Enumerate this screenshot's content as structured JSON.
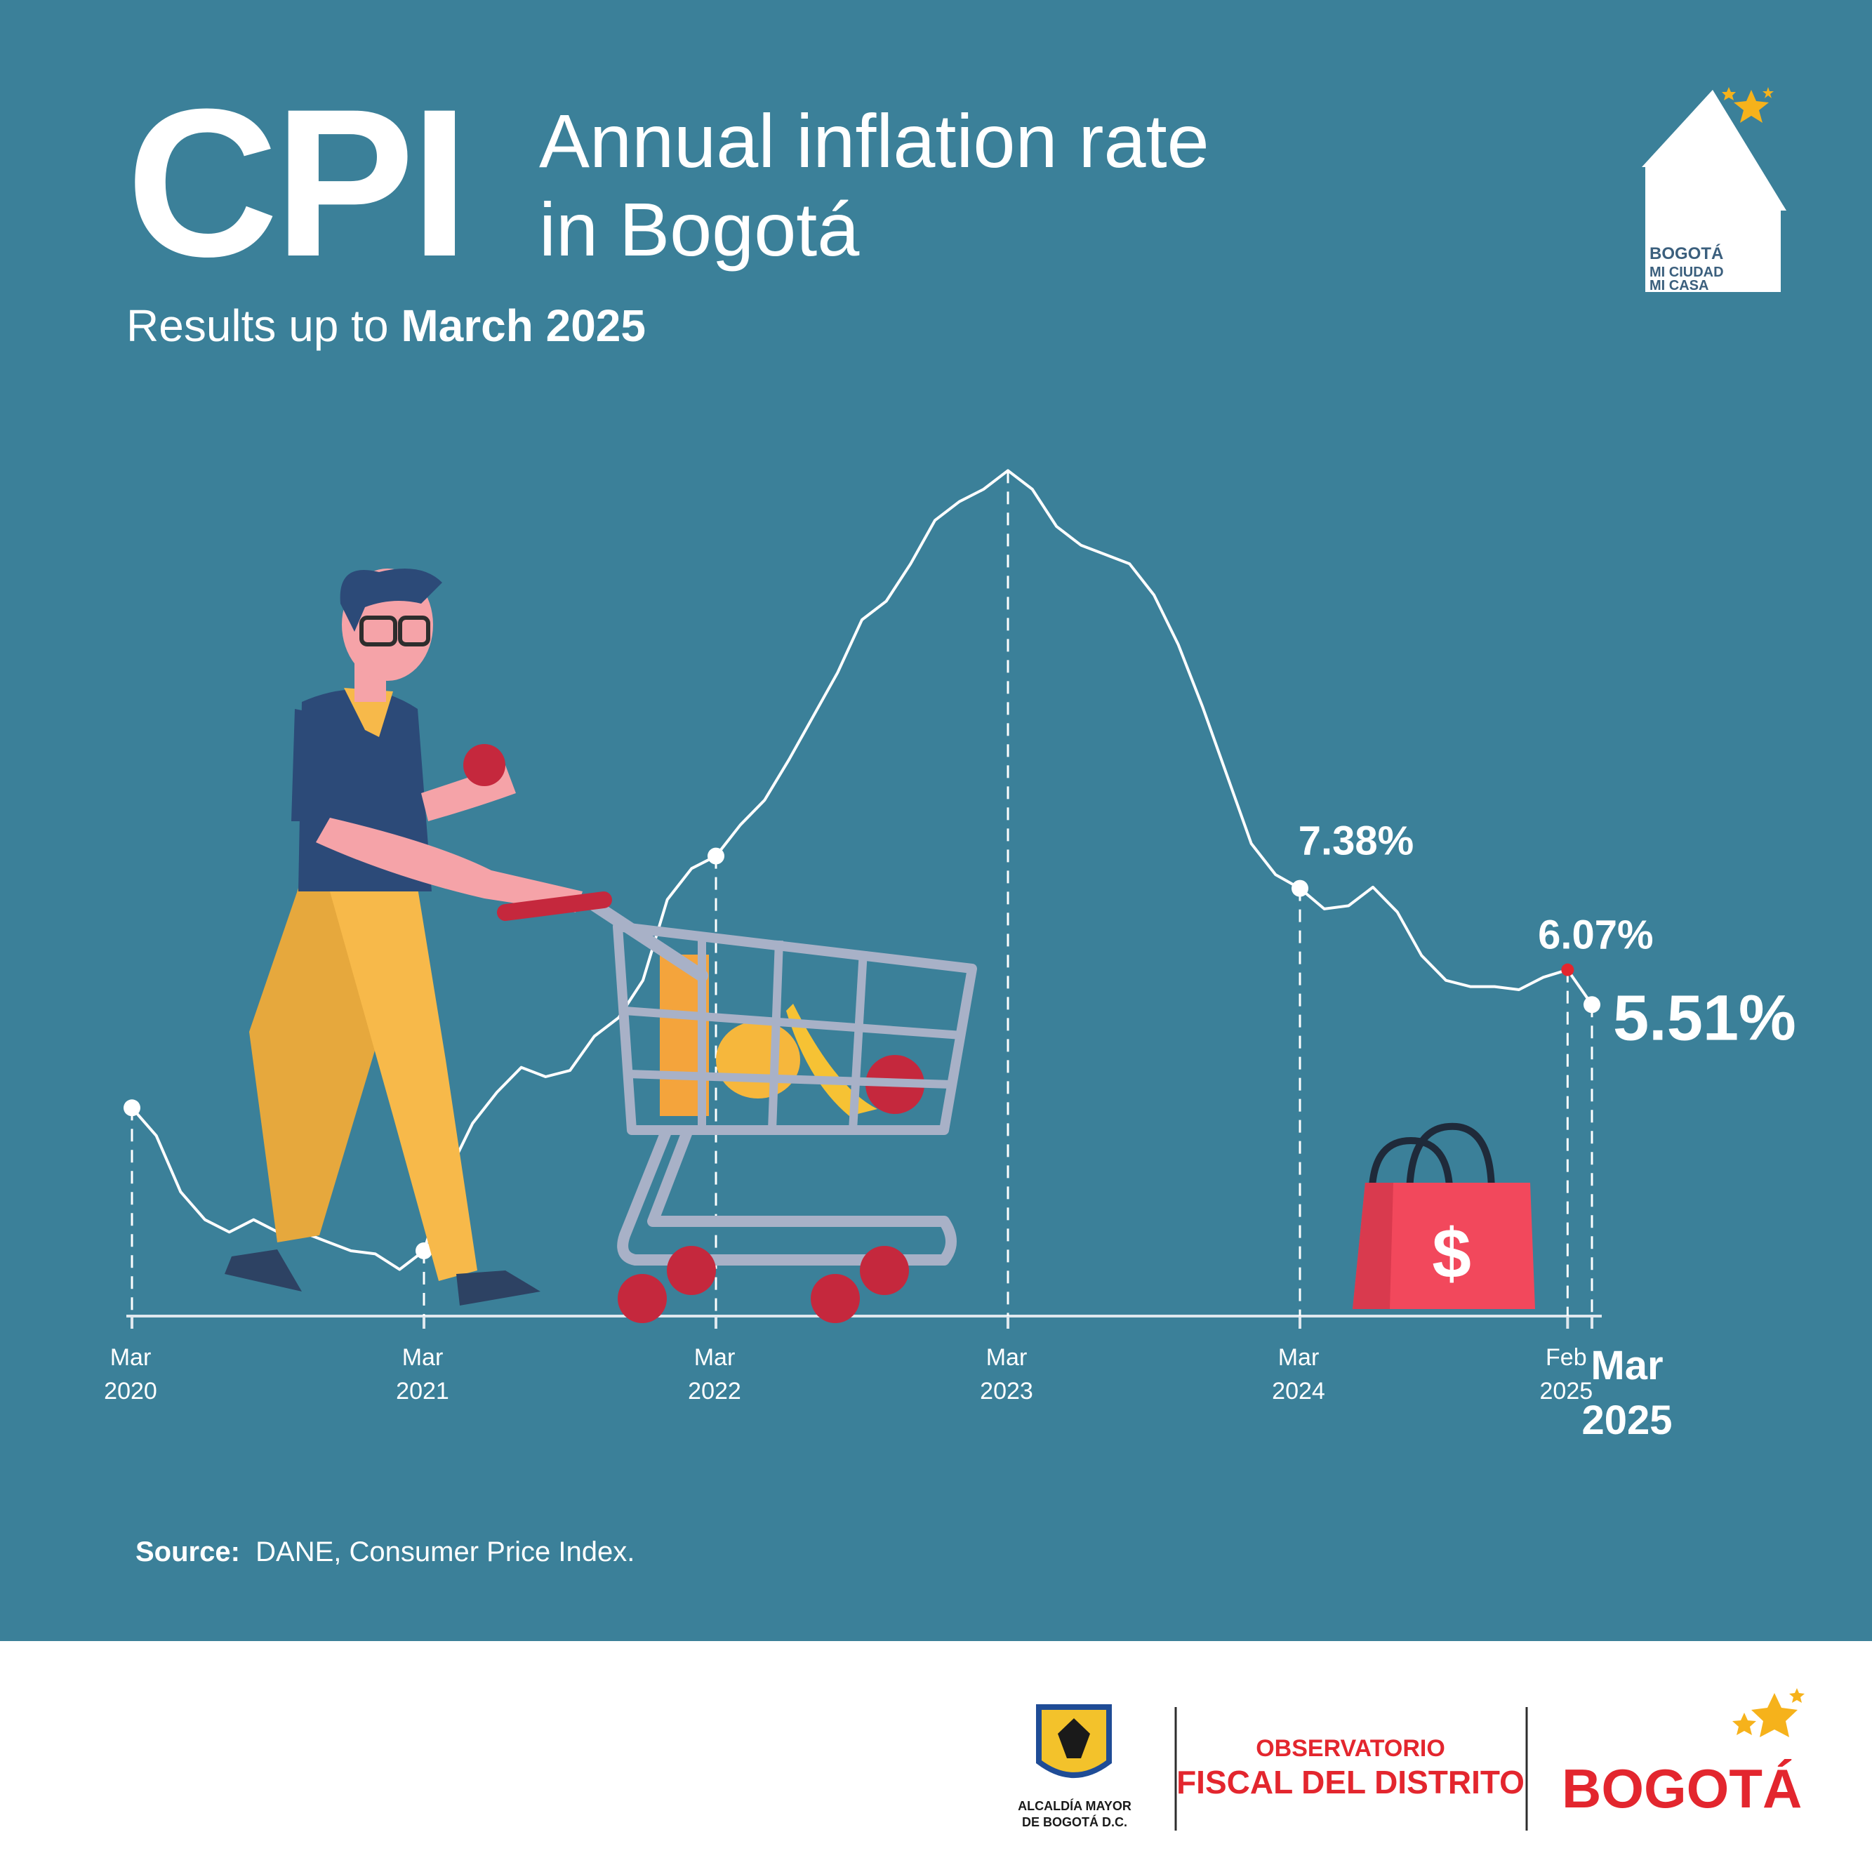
{
  "header": {
    "cpi": "CPI",
    "title_line1": "Annual inflation rate",
    "title_line2": "in Bogotá",
    "subtitle_prefix": "Results up to ",
    "subtitle_bold": "March 2025"
  },
  "source": {
    "label": "Source:",
    "text": "DANE, Consumer Price Index."
  },
  "badge": {
    "line1": "BOGOTÁ",
    "line2": "MI CIUDAD",
    "line3": "MI CASA"
  },
  "bag": {
    "symbol": "$"
  },
  "footer": {
    "alcaldia_line1": "ALCALDÍA MAYOR",
    "alcaldia_line2": "DE BOGOTÁ D.C.",
    "observatorio_line1": "OBSERVATORIO",
    "observatorio_line2": "FISCAL DEL DISTRITO",
    "brand": "BOGOTÁ"
  },
  "colors": {
    "background": "#3b8099",
    "line": "#ffffff",
    "feb_marker": "#e3262e",
    "brand_red": "#e3262e",
    "star": "#f6b21b",
    "bag": "#f2485c"
  },
  "chart_data": {
    "type": "line",
    "title": "Annual inflation rate in Bogotá",
    "subtitle": "Results up to March 2025",
    "xlabel": "",
    "ylabel": "",
    "grid": false,
    "ylim": [
      0.5,
      14.5
    ],
    "x": [
      "2020-03",
      "2020-04",
      "2020-05",
      "2020-06",
      "2020-07",
      "2020-08",
      "2020-09",
      "2020-10",
      "2020-11",
      "2020-12",
      "2021-01",
      "2021-02",
      "2021-03",
      "2021-04",
      "2021-05",
      "2021-06",
      "2021-07",
      "2021-08",
      "2021-09",
      "2021-10",
      "2021-11",
      "2021-12",
      "2022-01",
      "2022-02",
      "2022-03",
      "2022-04",
      "2022-05",
      "2022-06",
      "2022-07",
      "2022-08",
      "2022-09",
      "2022-10",
      "2022-11",
      "2022-12",
      "2023-01",
      "2023-02",
      "2023-03",
      "2023-04",
      "2023-05",
      "2023-06",
      "2023-07",
      "2023-08",
      "2023-09",
      "2023-10",
      "2023-11",
      "2023-12",
      "2024-01",
      "2024-02",
      "2024-03",
      "2024-04",
      "2024-05",
      "2024-06",
      "2024-07",
      "2024-08",
      "2024-09",
      "2024-10",
      "2024-11",
      "2024-12",
      "2025-01",
      "2025-02",
      "2025-03"
    ],
    "series": [
      {
        "values": [
          3.85,
          3.4,
          2.5,
          2.05,
          1.85,
          2.05,
          1.85,
          1.85,
          1.7,
          1.55,
          1.5,
          1.25,
          1.55,
          2.8,
          3.6,
          4.1,
          4.5,
          4.35,
          4.45,
          5.0,
          5.3,
          5.9,
          7.2,
          7.7,
          7.9,
          8.4,
          8.8,
          9.45,
          10.15,
          10.85,
          11.7,
          12.0,
          12.6,
          13.3,
          13.6,
          13.8,
          14.1,
          13.8,
          13.2,
          12.9,
          12.75,
          12.6,
          12.1,
          11.3,
          10.3,
          9.2,
          8.1,
          7.6,
          7.38,
          7.05,
          7.1,
          7.4,
          7.0,
          6.3,
          5.9,
          5.8,
          5.8,
          5.75,
          5.95,
          6.07,
          5.51
        ]
      }
    ],
    "ticks": [
      {
        "line1": "Mar",
        "line2": "2020",
        "x": "2020-03"
      },
      {
        "line1": "Mar",
        "line2": "2021",
        "x": "2021-03"
      },
      {
        "line1": "Mar",
        "line2": "2022",
        "x": "2022-03"
      },
      {
        "line1": "Mar",
        "line2": "2023",
        "x": "2023-03"
      },
      {
        "line1": "Mar",
        "line2": "2024",
        "x": "2024-03"
      },
      {
        "line1": "Feb",
        "line2": "2025",
        "x": "2025-02"
      },
      {
        "line1": "Mar",
        "line2": "2025",
        "x": "2025-03"
      }
    ],
    "annotations": [
      {
        "x": "2024-03",
        "text": "7.38%"
      },
      {
        "x": "2025-02",
        "text": "6.07%"
      },
      {
        "x": "2025-03",
        "text": "5.51%"
      }
    ]
  }
}
